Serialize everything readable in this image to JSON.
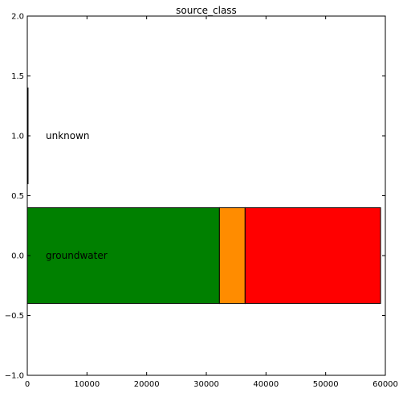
{
  "chart_data": {
    "type": "bar",
    "orientation": "horizontal-stacked",
    "title": "source_class",
    "xlabel": "",
    "ylabel": "",
    "xlim": [
      0,
      60000
    ],
    "ylim": [
      -1.0,
      2.0
    ],
    "x_ticks": [
      0,
      10000,
      20000,
      30000,
      40000,
      50000,
      60000
    ],
    "x_tick_labels": [
      "0",
      "10000",
      "20000",
      "30000",
      "40000",
      "50000",
      "60000"
    ],
    "y_ticks": [
      -1.0,
      -0.5,
      0.0,
      0.5,
      1.0,
      1.5,
      2.0
    ],
    "y_tick_labels": [
      "−1.0",
      "−0.5",
      "0.0",
      "0.5",
      "1.0",
      "1.5",
      "2.0"
    ],
    "grid": false,
    "categories": [
      {
        "label": "groundwater",
        "y": 0.0,
        "height": 0.8
      },
      {
        "label": "unknown",
        "y": 1.0,
        "height": 0.8
      }
    ],
    "series": [
      {
        "color": "#008000",
        "values": [
          32200,
          130
        ]
      },
      {
        "color": "#ff8c00",
        "values": [
          4300,
          0
        ]
      },
      {
        "color": "#ff0000",
        "values": [
          22700,
          0
        ]
      }
    ]
  }
}
